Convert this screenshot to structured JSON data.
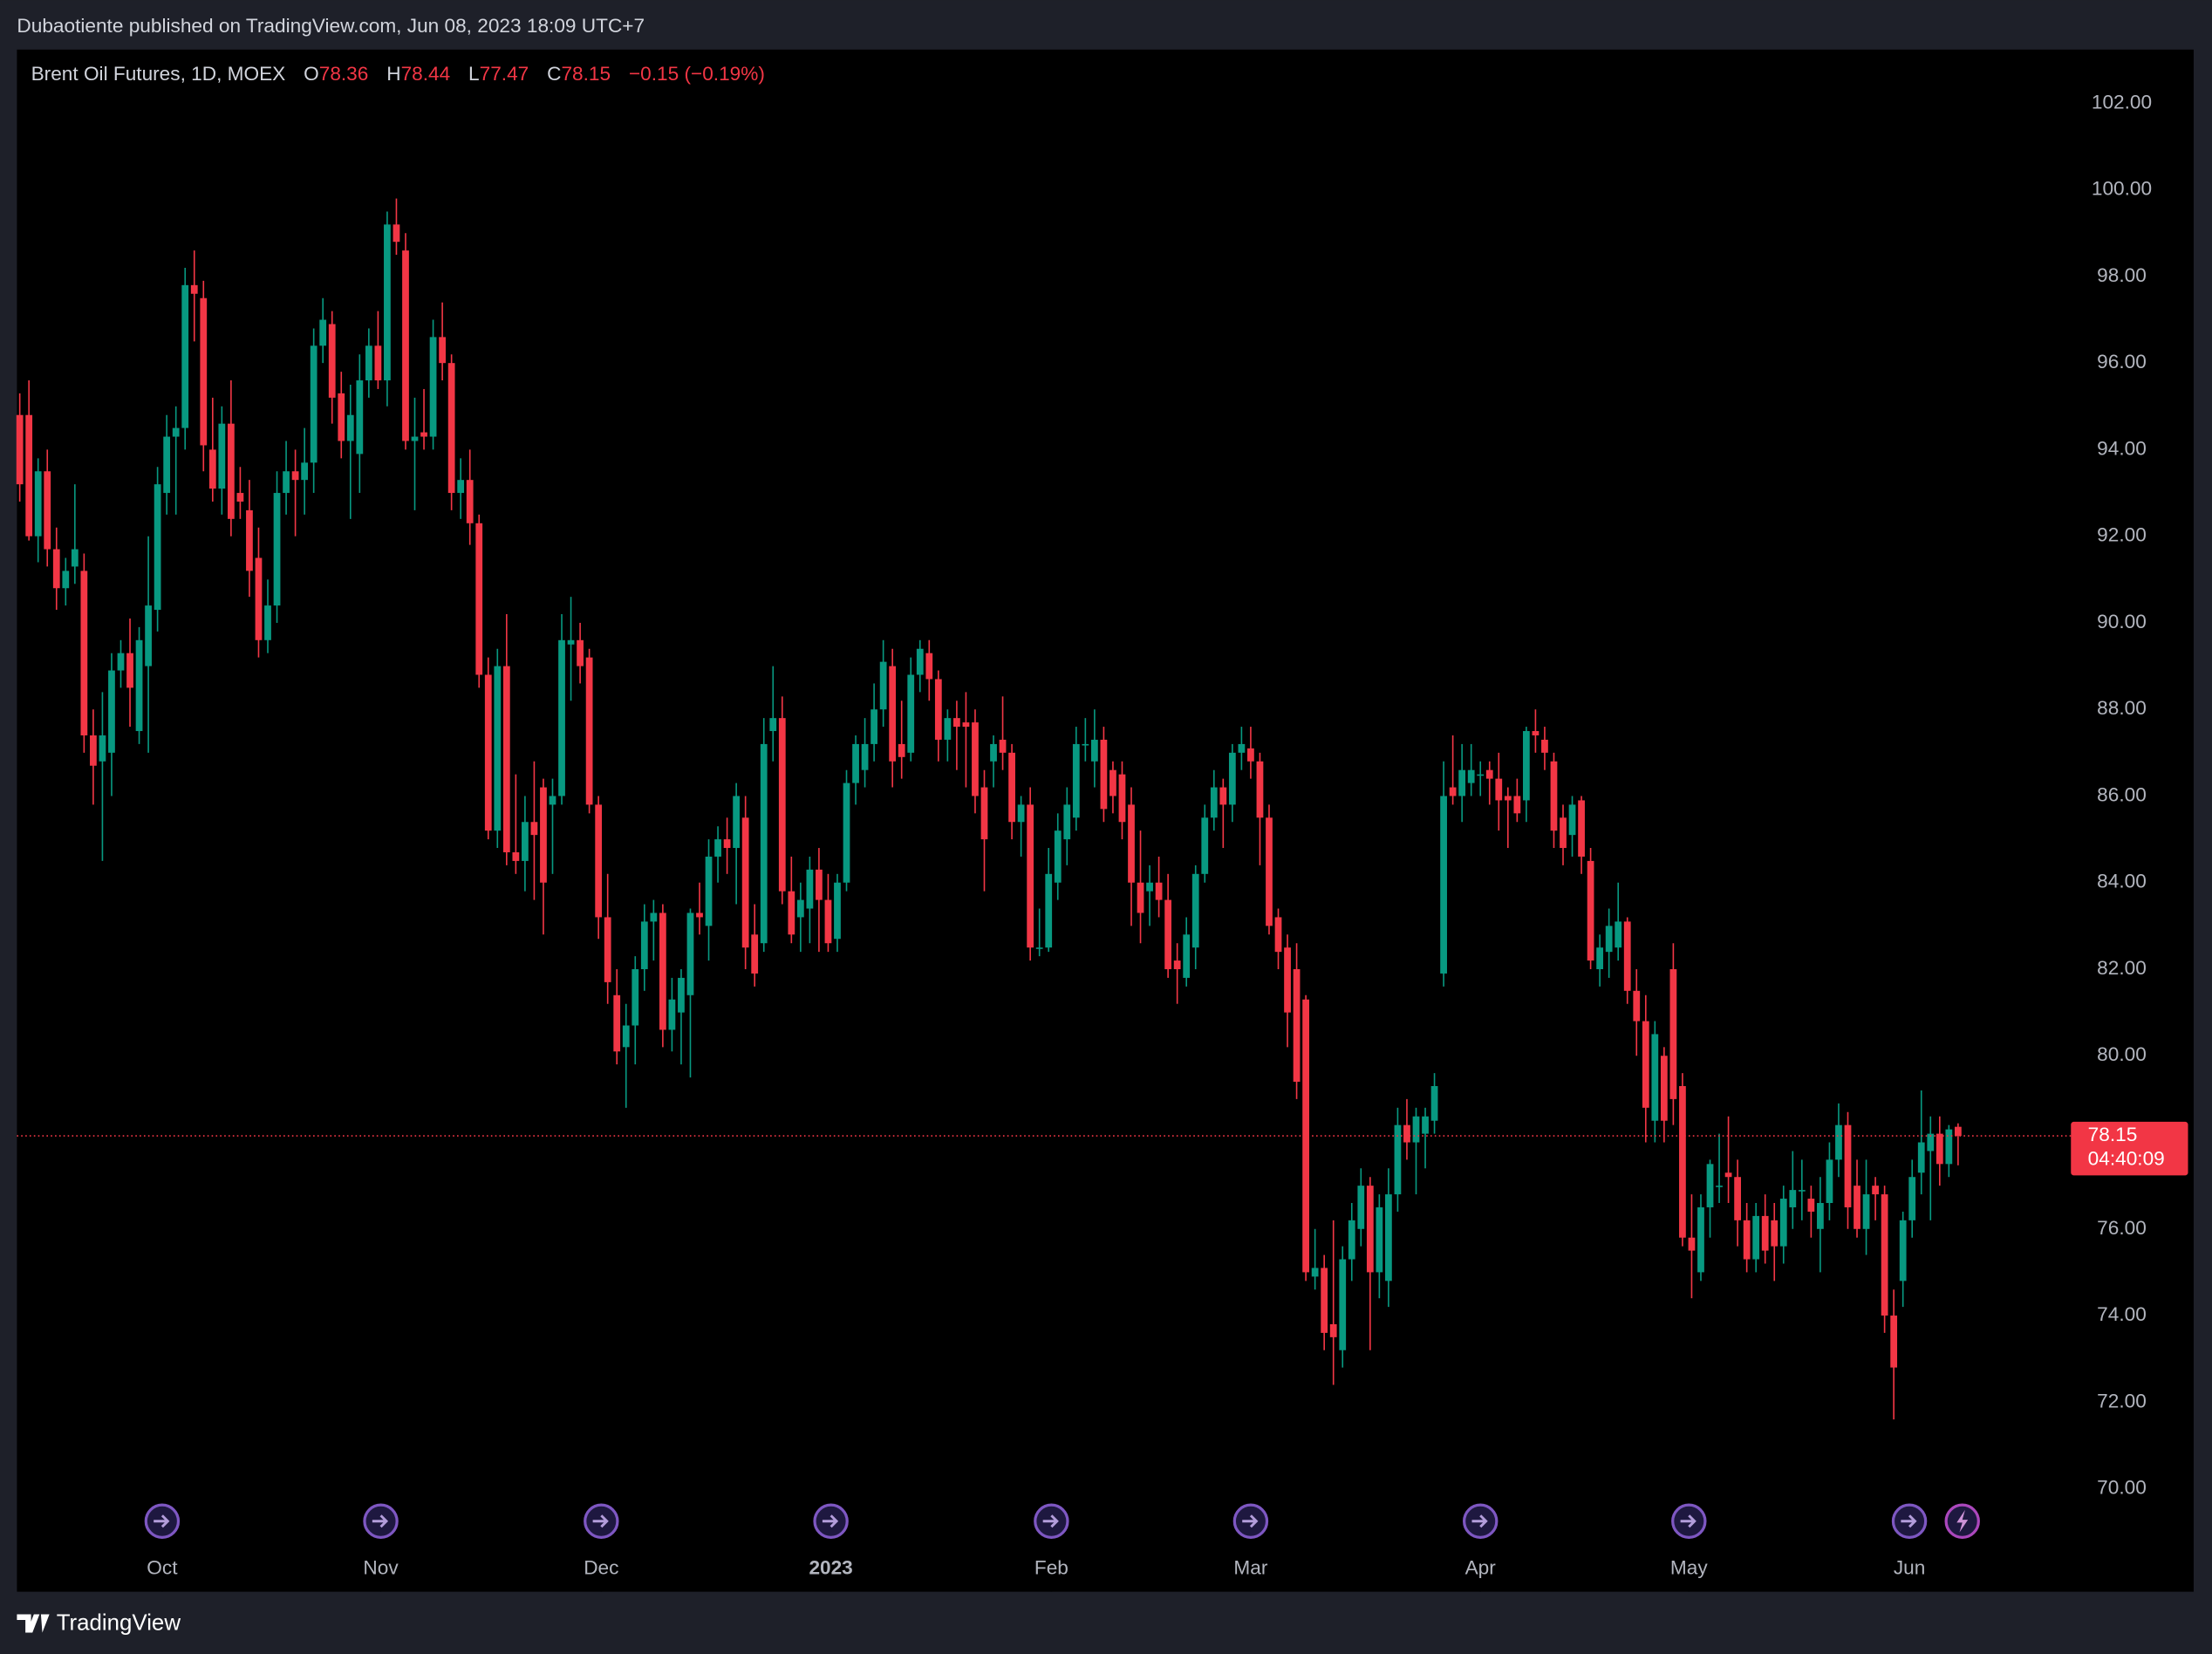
{
  "header": {
    "published": "Dubaotiente published on TradingView.com, Jun 08, 2023 18:09 UTC+7"
  },
  "footer": {
    "brand": "TradingView"
  },
  "chart_data": {
    "type": "candlestick",
    "title": "Brent Oil Futures, 1D, MOEX",
    "legend_labels": {
      "open": "O",
      "high": "H",
      "low": "L",
      "close": "C"
    },
    "change": "−0.15 (−0.19%)",
    "countdown": "04:40:09",
    "up_color": "#089981",
    "down_color": "#f23645",
    "ylim": [
      68.86,
      103.24
    ],
    "yticks": [
      {
        "value": 70,
        "label": "70.00"
      },
      {
        "value": 72,
        "label": "72.00"
      },
      {
        "value": 74,
        "label": "74.00"
      },
      {
        "value": 76,
        "label": "76.00"
      },
      {
        "value": 78,
        "label": "78.00"
      },
      {
        "value": 80,
        "label": "80.00"
      },
      {
        "value": 82,
        "label": "82.00"
      },
      {
        "value": 84,
        "label": "84.00"
      },
      {
        "value": 86,
        "label": "86.00"
      },
      {
        "value": 88,
        "label": "88.00"
      },
      {
        "value": 90,
        "label": "90.00"
      },
      {
        "value": 92,
        "label": "92.00"
      },
      {
        "value": 94,
        "label": "94.00"
      },
      {
        "value": 96,
        "label": "96.00"
      },
      {
        "value": 98,
        "label": "98.00"
      },
      {
        "value": 100,
        "label": "100.00"
      },
      {
        "value": 102,
        "label": "102.00"
      }
    ],
    "xticks": [
      {
        "value": 15.5,
        "label": "Oct"
      },
      {
        "value": 39.3,
        "label": "Nov"
      },
      {
        "value": 63.3,
        "label": "Dec"
      },
      {
        "value": 88.3,
        "label": "2023"
      },
      {
        "value": 112.3,
        "label": "Feb"
      },
      {
        "value": 134,
        "label": "Mar"
      },
      {
        "value": 159,
        "label": "Apr"
      },
      {
        "value": 181.7,
        "label": "May"
      },
      {
        "value": 205.7,
        "label": "Jun"
      }
    ],
    "ohlc": [
      [
        94.8,
        95.3,
        92.8,
        93.2
      ],
      [
        94.8,
        95.6,
        91.9,
        92.0
      ],
      [
        92.0,
        93.8,
        91.4,
        93.5
      ],
      [
        93.5,
        94.0,
        91.3,
        91.7
      ],
      [
        91.7,
        92.2,
        90.3,
        90.8
      ],
      [
        90.8,
        91.5,
        90.4,
        91.2
      ],
      [
        91.3,
        93.2,
        90.9,
        91.7
      ],
      [
        91.2,
        91.6,
        87.0,
        87.4
      ],
      [
        87.4,
        88.0,
        85.8,
        86.7
      ],
      [
        86.8,
        88.4,
        84.5,
        87.4
      ],
      [
        87.0,
        89.3,
        86.0,
        88.9
      ],
      [
        88.9,
        89.6,
        88.5,
        89.3
      ],
      [
        89.3,
        90.1,
        87.6,
        88.5
      ],
      [
        87.5,
        89.9,
        87.2,
        89.6
      ],
      [
        89.0,
        92.0,
        87.0,
        90.4
      ],
      [
        90.3,
        93.6,
        89.8,
        93.2
      ],
      [
        93.0,
        94.8,
        92.5,
        94.3
      ],
      [
        94.3,
        95.0,
        92.5,
        94.5
      ],
      [
        94.5,
        98.2,
        94.0,
        97.8
      ],
      [
        97.8,
        98.6,
        96.5,
        97.6
      ],
      [
        97.5,
        97.9,
        93.5,
        94.1
      ],
      [
        94.0,
        95.2,
        92.8,
        93.1
      ],
      [
        93.1,
        95.0,
        92.5,
        94.6
      ],
      [
        94.6,
        95.6,
        92.0,
        92.4
      ],
      [
        93.0,
        93.6,
        92.4,
        92.8
      ],
      [
        92.6,
        93.3,
        90.6,
        91.2
      ],
      [
        91.5,
        92.2,
        89.2,
        89.6
      ],
      [
        89.6,
        91.0,
        89.3,
        90.4
      ],
      [
        90.4,
        93.5,
        90.0,
        93.0
      ],
      [
        93.0,
        94.2,
        92.5,
        93.5
      ],
      [
        93.5,
        94.0,
        92.0,
        93.3
      ],
      [
        93.3,
        94.5,
        92.5,
        93.7
      ],
      [
        93.7,
        96.8,
        93.0,
        96.4
      ],
      [
        96.4,
        97.5,
        96.0,
        97.0
      ],
      [
        96.9,
        97.2,
        94.6,
        95.2
      ],
      [
        95.3,
        95.8,
        93.8,
        94.2
      ],
      [
        94.2,
        95.5,
        92.4,
        94.8
      ],
      [
        93.9,
        96.2,
        93.0,
        95.6
      ],
      [
        95.6,
        96.8,
        95.2,
        96.4
      ],
      [
        96.4,
        97.2,
        95.4,
        95.6
      ],
      [
        95.6,
        99.5,
        95.0,
        99.2
      ],
      [
        99.2,
        99.8,
        98.5,
        98.8
      ],
      [
        98.6,
        99.0,
        94.0,
        94.2
      ],
      [
        94.2,
        95.2,
        92.6,
        94.3
      ],
      [
        94.4,
        95.4,
        94.0,
        94.3
      ],
      [
        94.3,
        97.0,
        94.0,
        96.6
      ],
      [
        96.6,
        97.4,
        95.6,
        96.0
      ],
      [
        96.0,
        96.2,
        92.6,
        93.0
      ],
      [
        93.0,
        93.8,
        92.4,
        93.3
      ],
      [
        93.3,
        94.0,
        91.8,
        92.3
      ],
      [
        92.3,
        92.5,
        88.5,
        88.8
      ],
      [
        88.8,
        89.2,
        85.0,
        85.2
      ],
      [
        85.2,
        89.4,
        84.8,
        89.0
      ],
      [
        89.0,
        90.2,
        84.4,
        84.7
      ],
      [
        84.7,
        86.5,
        84.2,
        84.5
      ],
      [
        84.5,
        86.0,
        83.8,
        85.4
      ],
      [
        85.4,
        86.8,
        83.6,
        85.1
      ],
      [
        86.2,
        86.4,
        82.8,
        84.0
      ],
      [
        85.8,
        86.4,
        84.2,
        86.0
      ],
      [
        86.0,
        90.2,
        85.8,
        89.6
      ],
      [
        89.5,
        90.6,
        88.2,
        89.6
      ],
      [
        89.6,
        90.0,
        88.6,
        89.0
      ],
      [
        89.2,
        89.4,
        85.6,
        85.8
      ],
      [
        85.8,
        86.0,
        82.7,
        83.2
      ],
      [
        83.2,
        84.2,
        81.2,
        81.7
      ],
      [
        81.4,
        82.0,
        79.8,
        80.1
      ],
      [
        80.2,
        81.2,
        78.8,
        80.7
      ],
      [
        80.7,
        82.3,
        79.8,
        82.0
      ],
      [
        82.0,
        83.5,
        81.5,
        83.1
      ],
      [
        83.1,
        83.6,
        82.2,
        83.3
      ],
      [
        83.3,
        83.5,
        80.2,
        80.6
      ],
      [
        80.6,
        81.8,
        80.1,
        81.3
      ],
      [
        81.0,
        82.0,
        79.8,
        81.8
      ],
      [
        81.4,
        83.4,
        79.5,
        83.3
      ],
      [
        83.3,
        84.0,
        82.8,
        83.2
      ],
      [
        83.0,
        85.0,
        82.2,
        84.6
      ],
      [
        84.6,
        85.3,
        84.0,
        85.0
      ],
      [
        85.0,
        85.5,
        84.2,
        84.8
      ],
      [
        84.8,
        86.3,
        83.5,
        86.0
      ],
      [
        85.5,
        86.0,
        82.0,
        82.5
      ],
      [
        82.8,
        83.5,
        81.6,
        81.9
      ],
      [
        82.6,
        87.8,
        82.4,
        87.2
      ],
      [
        87.5,
        89.0,
        86.8,
        87.8
      ],
      [
        87.8,
        88.3,
        83.5,
        83.8
      ],
      [
        83.8,
        84.6,
        82.6,
        82.8
      ],
      [
        83.2,
        84.0,
        82.4,
        83.6
      ],
      [
        83.4,
        84.6,
        82.6,
        84.3
      ],
      [
        84.3,
        84.8,
        82.4,
        83.6
      ],
      [
        83.6,
        84.2,
        82.4,
        82.6
      ],
      [
        82.7,
        84.2,
        82.4,
        84.0
      ],
      [
        84.0,
        86.6,
        83.8,
        86.3
      ],
      [
        86.3,
        87.4,
        85.8,
        87.2
      ],
      [
        86.6,
        87.8,
        86.2,
        87.2
      ],
      [
        87.2,
        88.6,
        86.8,
        88.0
      ],
      [
        88.0,
        89.6,
        87.6,
        89.1
      ],
      [
        89.0,
        89.4,
        86.2,
        86.8
      ],
      [
        87.2,
        88.2,
        86.4,
        86.9
      ],
      [
        87.0,
        89.2,
        86.8,
        88.8
      ],
      [
        88.8,
        89.6,
        88.4,
        89.4
      ],
      [
        89.3,
        89.6,
        88.2,
        88.7
      ],
      [
        88.7,
        88.9,
        86.8,
        87.3
      ],
      [
        87.3,
        88.0,
        86.8,
        87.8
      ],
      [
        87.8,
        88.2,
        86.6,
        87.6
      ],
      [
        87.7,
        88.4,
        86.2,
        87.6
      ],
      [
        87.7,
        88.0,
        85.6,
        86.0
      ],
      [
        86.2,
        86.6,
        83.8,
        85.0
      ],
      [
        86.8,
        87.4,
        86.2,
        87.2
      ],
      [
        87.3,
        88.3,
        86.6,
        87.0
      ],
      [
        87.0,
        87.2,
        85.0,
        85.4
      ],
      [
        85.4,
        86.0,
        84.6,
        85.8
      ],
      [
        85.8,
        86.2,
        82.2,
        82.5
      ],
      [
        82.5,
        83.4,
        82.3,
        82.5
      ],
      [
        82.5,
        84.8,
        82.4,
        84.2
      ],
      [
        84.0,
        85.6,
        83.6,
        85.2
      ],
      [
        85.0,
        86.2,
        84.4,
        85.8
      ],
      [
        85.5,
        87.6,
        85.2,
        87.2
      ],
      [
        87.2,
        87.8,
        86.8,
        87.2
      ],
      [
        86.8,
        88.0,
        86.2,
        87.3
      ],
      [
        87.3,
        87.6,
        85.4,
        85.7
      ],
      [
        86.6,
        86.8,
        85.6,
        86.0
      ],
      [
        86.5,
        86.8,
        85.0,
        85.4
      ],
      [
        85.8,
        86.2,
        83.0,
        84.0
      ],
      [
        84.0,
        85.2,
        82.6,
        83.3
      ],
      [
        83.8,
        84.4,
        83.0,
        84.0
      ],
      [
        84.0,
        84.6,
        83.2,
        83.6
      ],
      [
        83.6,
        84.2,
        81.8,
        82.0
      ],
      [
        82.2,
        82.6,
        81.2,
        82.0
      ],
      [
        81.8,
        83.2,
        81.6,
        82.8
      ],
      [
        82.5,
        84.4,
        82.0,
        84.2
      ],
      [
        84.2,
        85.8,
        84.0,
        85.5
      ],
      [
        85.5,
        86.6,
        85.2,
        86.2
      ],
      [
        86.2,
        86.4,
        84.8,
        85.8
      ],
      [
        85.8,
        87.2,
        85.4,
        87.0
      ],
      [
        87.0,
        87.6,
        86.6,
        87.2
      ],
      [
        87.1,
        87.6,
        86.4,
        86.8
      ],
      [
        86.8,
        87.0,
        84.4,
        85.5
      ],
      [
        85.5,
        85.8,
        82.8,
        83.0
      ],
      [
        83.2,
        83.4,
        82.0,
        82.4
      ],
      [
        82.5,
        82.8,
        80.2,
        81.0
      ],
      [
        82.0,
        82.6,
        79.0,
        79.4
      ],
      [
        81.3,
        81.4,
        74.8,
        75.0
      ],
      [
        74.9,
        76.0,
        74.6,
        75.1
      ],
      [
        75.1,
        75.4,
        73.2,
        73.6
      ],
      [
        73.8,
        76.2,
        72.4,
        73.5
      ],
      [
        73.2,
        75.6,
        72.8,
        75.3
      ],
      [
        75.3,
        76.6,
        74.8,
        76.2
      ],
      [
        76.0,
        77.4,
        75.6,
        77.0
      ],
      [
        77.0,
        77.2,
        73.2,
        75.0
      ],
      [
        75.0,
        76.8,
        74.4,
        76.5
      ],
      [
        74.8,
        77.4,
        74.2,
        76.8
      ],
      [
        76.8,
        78.8,
        76.4,
        78.4
      ],
      [
        78.4,
        79.0,
        77.6,
        78.0
      ],
      [
        78.0,
        78.8,
        76.8,
        78.6
      ],
      [
        78.2,
        78.8,
        77.4,
        78.6
      ],
      [
        78.5,
        79.6,
        78.2,
        79.3
      ],
      [
        81.9,
        86.8,
        81.6,
        86.0
      ],
      [
        86.2,
        87.4,
        85.8,
        86.0
      ],
      [
        86.0,
        87.2,
        85.4,
        86.6
      ],
      [
        86.3,
        87.2,
        86.0,
        86.6
      ],
      [
        86.5,
        86.8,
        86.0,
        86.5
      ],
      [
        86.6,
        86.8,
        85.8,
        86.4
      ],
      [
        86.4,
        87.0,
        85.2,
        85.9
      ],
      [
        86.0,
        86.2,
        84.8,
        85.9
      ],
      [
        86.0,
        86.4,
        85.4,
        85.6
      ],
      [
        85.9,
        87.6,
        85.4,
        87.5
      ],
      [
        87.5,
        88.0,
        87.0,
        87.4
      ],
      [
        87.3,
        87.6,
        86.6,
        87.0
      ],
      [
        86.8,
        87.0,
        84.8,
        85.2
      ],
      [
        85.5,
        85.8,
        84.4,
        84.8
      ],
      [
        85.1,
        86.0,
        84.6,
        85.8
      ],
      [
        85.9,
        86.0,
        84.2,
        84.6
      ],
      [
        84.5,
        84.8,
        82.0,
        82.2
      ],
      [
        82.0,
        82.8,
        81.6,
        82.5
      ],
      [
        82.4,
        83.4,
        81.8,
        83.0
      ],
      [
        82.5,
        84.0,
        82.2,
        83.1
      ],
      [
        83.1,
        83.2,
        81.2,
        81.5
      ],
      [
        81.5,
        82.0,
        80.0,
        80.8
      ],
      [
        80.8,
        81.4,
        78.0,
        78.8
      ],
      [
        78.5,
        80.8,
        78.0,
        80.5
      ],
      [
        80.0,
        80.2,
        78.0,
        78.5
      ],
      [
        82.0,
        82.6,
        78.4,
        79.0
      ],
      [
        79.3,
        79.6,
        75.6,
        75.8
      ],
      [
        75.8,
        76.8,
        74.4,
        75.5
      ],
      [
        75.0,
        76.8,
        74.8,
        76.5
      ],
      [
        76.5,
        77.6,
        75.8,
        77.5
      ],
      [
        77.0,
        78.2,
        76.6,
        77.0
      ],
      [
        77.3,
        78.6,
        76.6,
        77.2
      ],
      [
        77.2,
        77.6,
        75.6,
        76.2
      ],
      [
        76.2,
        76.6,
        75.0,
        75.3
      ],
      [
        75.3,
        76.6,
        75.0,
        76.3
      ],
      [
        76.3,
        76.8,
        75.2,
        75.5
      ],
      [
        76.2,
        76.6,
        74.8,
        75.6
      ],
      [
        75.6,
        77.0,
        75.2,
        76.7
      ],
      [
        76.5,
        77.8,
        76.0,
        76.9
      ],
      [
        76.9,
        77.6,
        76.2,
        76.9
      ],
      [
        76.7,
        77.0,
        75.8,
        76.4
      ],
      [
        76.0,
        77.2,
        75.0,
        76.6
      ],
      [
        76.6,
        78.0,
        76.2,
        77.6
      ],
      [
        77.6,
        78.9,
        77.2,
        78.4
      ],
      [
        78.4,
        78.7,
        76.0,
        76.5
      ],
      [
        77.0,
        77.6,
        75.8,
        76.0
      ],
      [
        76.0,
        77.6,
        75.4,
        76.8
      ],
      [
        77.0,
        77.2,
        76.2,
        76.8
      ],
      [
        76.8,
        77.0,
        73.6,
        74.0
      ],
      [
        74.0,
        74.6,
        71.6,
        72.8
      ],
      [
        74.8,
        76.4,
        74.2,
        76.2
      ],
      [
        76.2,
        77.6,
        75.8,
        77.2
      ],
      [
        77.3,
        79.2,
        76.8,
        78.0
      ],
      [
        77.8,
        78.6,
        76.2,
        78.2
      ],
      [
        78.2,
        78.6,
        77.0,
        77.5
      ],
      [
        77.5,
        78.4,
        77.2,
        78.3
      ],
      [
        78.36,
        78.44,
        77.47,
        78.15
      ]
    ]
  }
}
